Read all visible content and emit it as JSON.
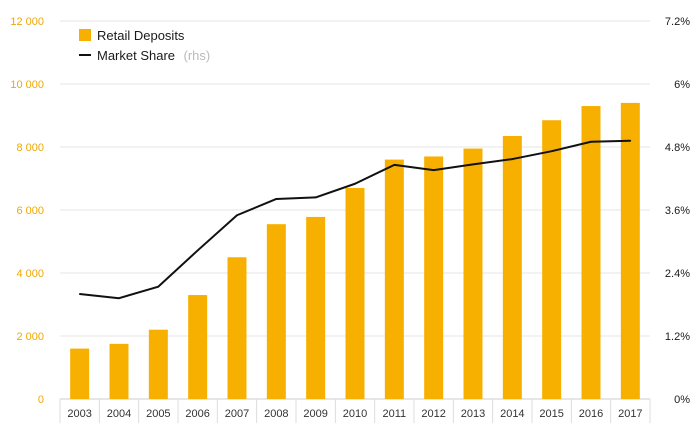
{
  "colors": {
    "bar": "#f8b000",
    "line": "#111111",
    "grid": "#e6e6e6",
    "left_tick": "#f0a800",
    "right_tick": "#1a1a1a"
  },
  "legend": {
    "deposits_label": "Retail Deposits",
    "share_label": "Market Share",
    "share_note": "(rhs)"
  },
  "chart_data": {
    "type": "bar",
    "title": "",
    "categories": [
      "2003",
      "2004",
      "2005",
      "2006",
      "2007",
      "2008",
      "2009",
      "2010",
      "2011",
      "2012",
      "2013",
      "2014",
      "2015",
      "2016",
      "2017"
    ],
    "series": [
      {
        "name": "Retail Deposits",
        "type": "bar",
        "axis": "left",
        "values": [
          1600,
          1750,
          2200,
          3300,
          4500,
          5550,
          5780,
          6700,
          7600,
          7700,
          7950,
          8350,
          8850,
          9300,
          9400
        ]
      },
      {
        "name": "Market Share",
        "type": "line",
        "axis": "right",
        "values": [
          2.0,
          1.92,
          2.14,
          2.83,
          3.5,
          3.81,
          3.84,
          4.1,
          4.46,
          4.36,
          4.47,
          4.57,
          4.72,
          4.9,
          4.92
        ]
      }
    ],
    "left_axis": {
      "ylim": [
        0,
        12000
      ],
      "ticks": [
        0,
        2000,
        4000,
        6000,
        8000,
        10000,
        12000
      ],
      "tick_labels": [
        "0",
        "2 000",
        "4 000",
        "6 000",
        "8 000",
        "10 000",
        "12 000"
      ]
    },
    "right_axis": {
      "ylim": [
        0,
        7.2
      ],
      "ticks": [
        0,
        1.2,
        2.4,
        3.6,
        4.8,
        6.0,
        7.2
      ],
      "tick_labels": [
        "0%",
        "1.2%",
        "2.4%",
        "3.6%",
        "4.8%",
        "6%",
        "7.2%"
      ]
    },
    "grid": true,
    "legend_position": "top-left"
  }
}
